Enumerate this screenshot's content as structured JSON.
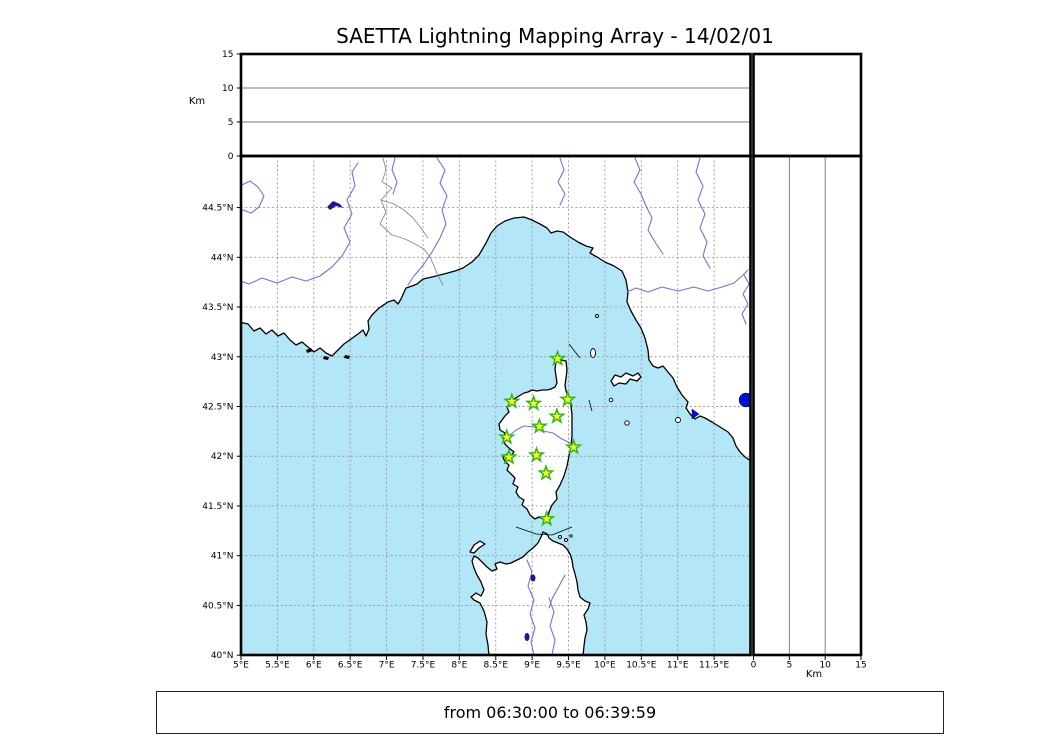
{
  "title": "SAETTA Lightning Mapping Array - 14/02/01",
  "footer": {
    "time_range": "from 06:30:00 to 06:39:59"
  },
  "map_axes": {
    "lon_tick_labels": [
      "5°E",
      "5.5°E",
      "6°E",
      "6.5°E",
      "7°E",
      "7.5°E",
      "8°E",
      "8.5°E",
      "9°E",
      "9.5°E",
      "10°E",
      "10.5°E",
      "11°E",
      "11.5°E"
    ],
    "lat_tick_labels": [
      "44.5°N",
      "44°N",
      "43.5°N",
      "43°N",
      "42.5°N",
      "42°N",
      "41.5°N",
      "41°N",
      "40.5°N",
      "40°N"
    ],
    "lon_range": [
      5,
      12
    ],
    "lat_range": [
      40,
      45
    ],
    "grid_step_deg": 0.5
  },
  "altitude_axes": {
    "unit_label_top": "Km",
    "unit_label_right": "Km",
    "tick_labels": [
      "0",
      "5",
      "10",
      "15"
    ],
    "tick_values_km": [
      0,
      5,
      10,
      15
    ],
    "range_km": [
      0,
      15
    ],
    "inner_gridlines_km": [
      5,
      10
    ]
  },
  "chart_data": {
    "type": "scatter",
    "description": "SAETTA lightning mapping array station locations (green stars) on lon/lat map; altitude panels (0-15 km) are empty for this interval",
    "station_marker": "star",
    "stations_lonlat": [
      [
        9.35,
        42.98
      ],
      [
        8.72,
        42.55
      ],
      [
        9.02,
        42.53
      ],
      [
        9.49,
        42.57
      ],
      [
        9.34,
        42.4
      ],
      [
        9.1,
        42.3
      ],
      [
        8.65,
        42.19
      ],
      [
        9.57,
        42.09
      ],
      [
        9.06,
        42.01
      ],
      [
        8.68,
        41.99
      ],
      [
        9.19,
        41.83
      ],
      [
        9.2,
        41.37
      ]
    ]
  },
  "colors": {
    "sea": "#b3e7f7",
    "land": "#ffffff",
    "river": "#7272d8",
    "grid": "#999999",
    "coast": "#000000",
    "station_fill": "#fbff2a",
    "station_stroke": "#35b414",
    "lake_blue": "#0013c8"
  }
}
